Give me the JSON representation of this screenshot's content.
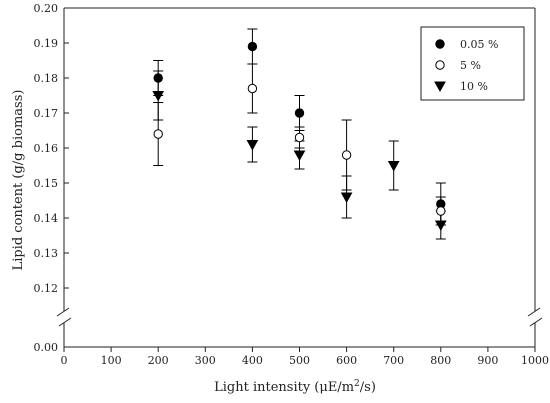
{
  "chart_data": {
    "type": "scatter",
    "xlabel": "Light intensity (μE/m²/s)",
    "xlabel_parts": {
      "prefix": "Light intensity (μE/m",
      "sup": "2",
      "suffix": "/s)"
    },
    "ylabel": "Lipid content (g/g biomass)",
    "xlim": [
      0,
      1000
    ],
    "x_ticks": [
      0,
      100,
      200,
      300,
      400,
      500,
      600,
      700,
      800,
      900,
      1000
    ],
    "x_tick_labels": [
      "0",
      "100",
      "200",
      "300",
      "400",
      "500",
      "600",
      "700",
      "800",
      "900",
      "1000"
    ],
    "y_ticks_upper": [
      0.12,
      0.13,
      0.14,
      0.15,
      0.16,
      0.17,
      0.18,
      0.19,
      0.2
    ],
    "y_tick_labels_upper": [
      "0.12",
      "0.13",
      "0.14",
      "0.15",
      "0.16",
      "0.17",
      "0.18",
      "0.19",
      "0.20"
    ],
    "y_tick_lower": 0.0,
    "y_tick_label_lower": "0.00",
    "y_axis_break": true,
    "grid": false,
    "legend_position": "top-right",
    "series": [
      {
        "name": "0.05 %",
        "marker": "filled-circle",
        "points": [
          {
            "x": 200,
            "y": 0.18,
            "err": 0.005
          },
          {
            "x": 400,
            "y": 0.189,
            "err": 0.005
          },
          {
            "x": 500,
            "y": 0.17,
            "err": 0.005
          },
          {
            "x": 600,
            "y": null,
            "err": null
          },
          {
            "x": 800,
            "y": 0.144,
            "err": 0.006
          }
        ]
      },
      {
        "name": "5 %",
        "marker": "open-circle",
        "points": [
          {
            "x": 200,
            "y": 0.164,
            "err": 0.009
          },
          {
            "x": 400,
            "y": 0.177,
            "err": 0.007
          },
          {
            "x": 500,
            "y": 0.163,
            "err": 0.003
          },
          {
            "x": 600,
            "y": 0.158,
            "err": 0.01
          },
          {
            "x": 800,
            "y": 0.142,
            "err": 0.004
          }
        ]
      },
      {
        "name": "10 %",
        "marker": "down-triangle",
        "points": [
          {
            "x": 200,
            "y": 0.175,
            "err": 0.007
          },
          {
            "x": 400,
            "y": 0.161,
            "err": 0.005
          },
          {
            "x": 500,
            "y": 0.158,
            "err": 0.004
          },
          {
            "x": 600,
            "y": 0.146,
            "err": 0.006
          },
          {
            "x": 700,
            "y": 0.155,
            "err": 0.007
          },
          {
            "x": 800,
            "y": 0.138,
            "err": 0.004
          }
        ]
      }
    ]
  }
}
